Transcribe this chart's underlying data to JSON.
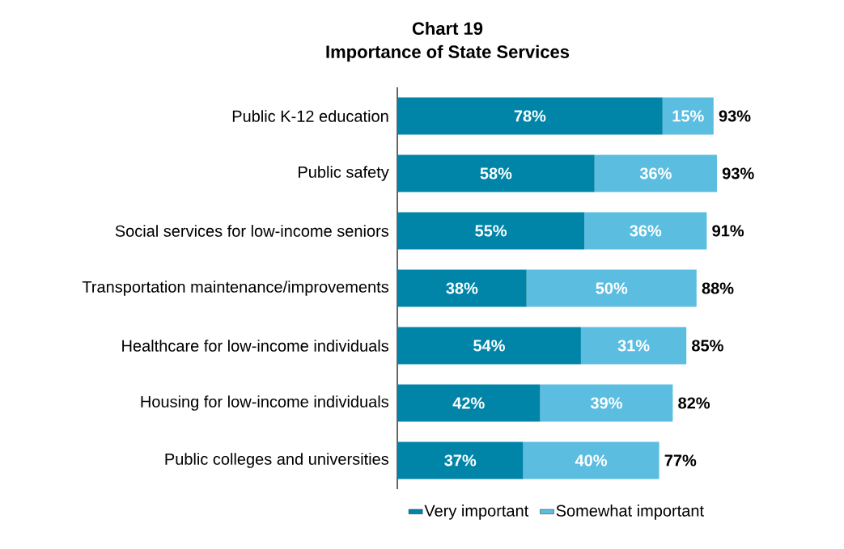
{
  "chart_data": {
    "type": "bar",
    "title": "Chart 19",
    "subtitle": "Importance of State Services",
    "orientation": "horizontal",
    "stacked": true,
    "legend": "bottom",
    "categories": [
      "Public K-12 education",
      "Public safety",
      "Social services for low-income seniors",
      "Transportation maintenance/improvements",
      "Healthcare for low-income individuals",
      "Housing for low-income individuals",
      "Public colleges and universities"
    ],
    "series": [
      {
        "name": "Very important",
        "color": "#0085a8",
        "values": [
          78,
          58,
          55,
          38,
          54,
          42,
          37
        ],
        "value_labels": [
          "78%",
          "58%",
          "55%",
          "38%",
          "54%",
          "42%",
          "37%"
        ]
      },
      {
        "name": "Somewhat important",
        "color": "#5bbde0",
        "values": [
          15,
          36,
          36,
          50,
          31,
          39,
          40
        ],
        "value_labels": [
          "15%",
          "36%",
          "36%",
          "50%",
          "31%",
          "39%",
          "40%"
        ]
      }
    ],
    "totals": [
      "93%",
      "93%",
      "91%",
      "88%",
      "85%",
      "82%",
      "77%"
    ]
  }
}
